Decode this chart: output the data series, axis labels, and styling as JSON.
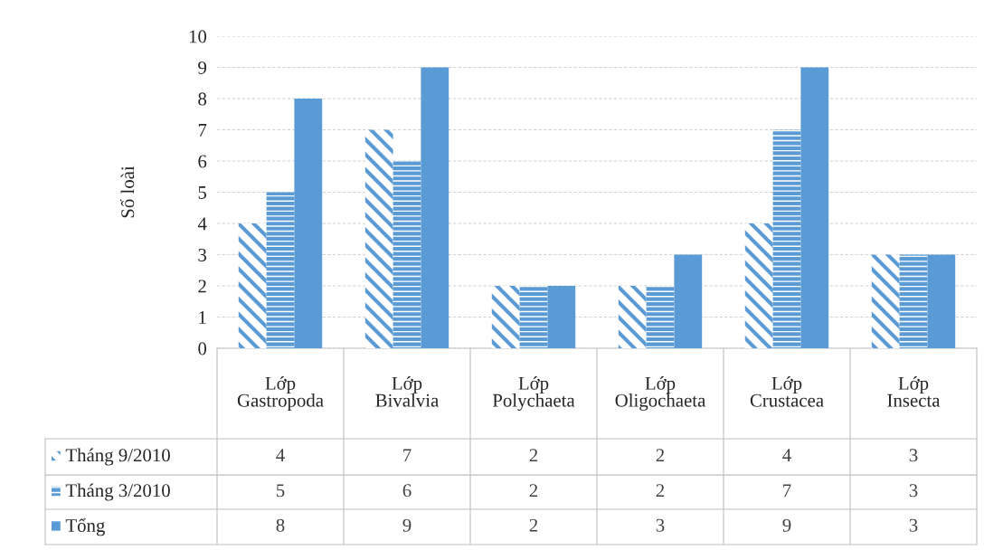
{
  "chart_data": {
    "type": "bar",
    "ylabel": "Số loài",
    "categories": [
      "Lớp Gastropoda",
      "Lớp Bivalvia",
      "Lớp Polychaeta",
      "Lớp Oligochaeta",
      "Lớp Crustacea",
      "Lớp Insecta"
    ],
    "series": [
      {
        "name": "Tháng 9/2010",
        "color": "#5b9bd5",
        "values": [
          4,
          7,
          2,
          2,
          4,
          3
        ]
      },
      {
        "name": "Tháng 3/2010",
        "color": "#5b9bd5",
        "values": [
          5,
          6,
          2,
          2,
          7,
          3
        ]
      },
      {
        "name": "Tổng",
        "color": "#5b9bd5",
        "values": [
          8,
          9,
          2,
          3,
          9,
          3
        ]
      }
    ],
    "ylim": [
      0,
      10
    ],
    "yticks": [
      0,
      1,
      2,
      3,
      4,
      5,
      6,
      7,
      8,
      9,
      10
    ],
    "grid": "y",
    "legend": "bottom",
    "data_labels": true
  }
}
